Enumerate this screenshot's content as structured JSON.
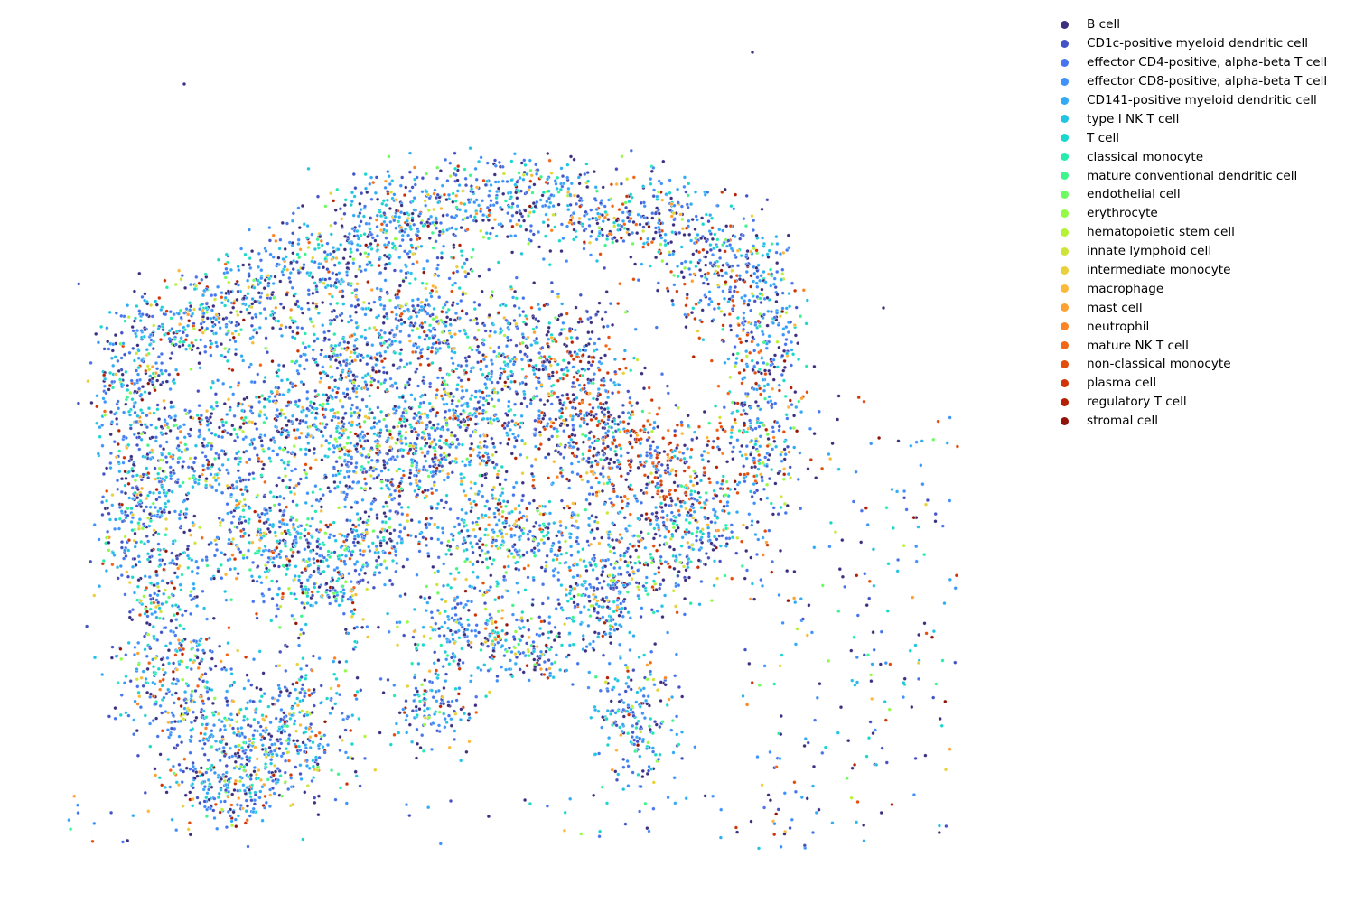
{
  "chart_data": {
    "type": "scatter",
    "title": "",
    "xlabel": "",
    "ylabel": "",
    "axes_visible": false,
    "grid": false,
    "legend_position": "right",
    "note": "",
    "categories": [
      {
        "name": "B cell",
        "color": "#3b2f80"
      },
      {
        "name": "CD1c-positive myeloid dendritic cell",
        "color": "#4352c4"
      },
      {
        "name": "effector CD4-positive, alpha-beta T cell",
        "color": "#4675ed"
      },
      {
        "name": "effector CD8-positive, alpha-beta T cell",
        "color": "#3f92fc"
      },
      {
        "name": "CD141-positive myeloid dendritic cell",
        "color": "#31abf5"
      },
      {
        "name": "type I NK T cell",
        "color": "#22c3e3"
      },
      {
        "name": "T cell",
        "color": "#1ad7cb"
      },
      {
        "name": "classical monocyte",
        "color": "#25ecac"
      },
      {
        "name": "mature conventional dendritic cell",
        "color": "#3ff48c"
      },
      {
        "name": "endothelial cell",
        "color": "#6efb61"
      },
      {
        "name": "erythrocyte",
        "color": "#92fb46"
      },
      {
        "name": "hematopoietic stem cell",
        "color": "#b5f238"
      },
      {
        "name": "innate lymphoid cell",
        "color": "#d0e437"
      },
      {
        "name": "intermediate monocyte",
        "color": "#e8d13a"
      },
      {
        "name": "macrophage",
        "color": "#fbb839"
      },
      {
        "name": "mast cell",
        "color": "#fea130"
      },
      {
        "name": "neutrophil",
        "color": "#fc8425"
      },
      {
        "name": "mature NK T cell",
        "color": "#f46617"
      },
      {
        "name": "non-classical monocyte",
        "color": "#e44c0c"
      },
      {
        "name": "plasma cell",
        "color": "#cf3506"
      },
      {
        "name": "regulatory T cell",
        "color": "#b42002"
      },
      {
        "name": "stromal cell",
        "color": "#90140a"
      }
    ]
  }
}
